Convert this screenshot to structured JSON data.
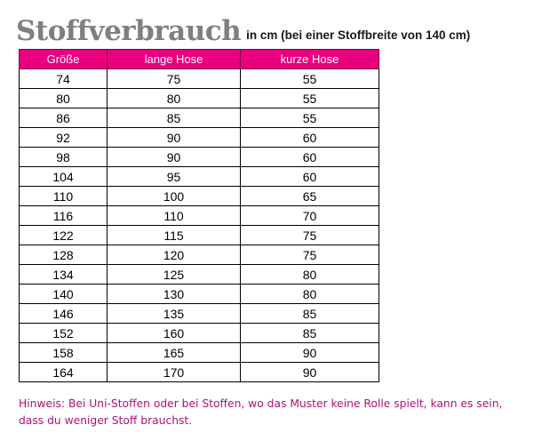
{
  "title": {
    "main": "Stoffverbrauch",
    "subtitle": "in cm (bei einer Stoffbreite von 140 cm)"
  },
  "table": {
    "headers": [
      "Größe",
      "lange Hose",
      "kurze Hose"
    ],
    "rows": [
      [
        "74",
        "75",
        "55"
      ],
      [
        "80",
        "80",
        "55"
      ],
      [
        "86",
        "85",
        "55"
      ],
      [
        "92",
        "90",
        "60"
      ],
      [
        "98",
        "90",
        "60"
      ],
      [
        "104",
        "95",
        "60"
      ],
      [
        "110",
        "100",
        "65"
      ],
      [
        "116",
        "110",
        "70"
      ],
      [
        "122",
        "115",
        "75"
      ],
      [
        "128",
        "120",
        "75"
      ],
      [
        "134",
        "125",
        "80"
      ],
      [
        "140",
        "130",
        "80"
      ],
      [
        "146",
        "135",
        "85"
      ],
      [
        "152",
        "160",
        "85"
      ],
      [
        "158",
        "165",
        "90"
      ],
      [
        "164",
        "170",
        "90"
      ]
    ]
  },
  "note": {
    "line1": "Hinweis: Bei Uni-Stoffen oder bei Stoffen, wo das Muster keine Rolle spielt, kann es sein,",
    "line2": "dass du weniger Stoff brauchst."
  },
  "colors": {
    "header_background": "#e8007f",
    "title_gray": "#7f7f7f",
    "note_color": "#b0107a"
  }
}
